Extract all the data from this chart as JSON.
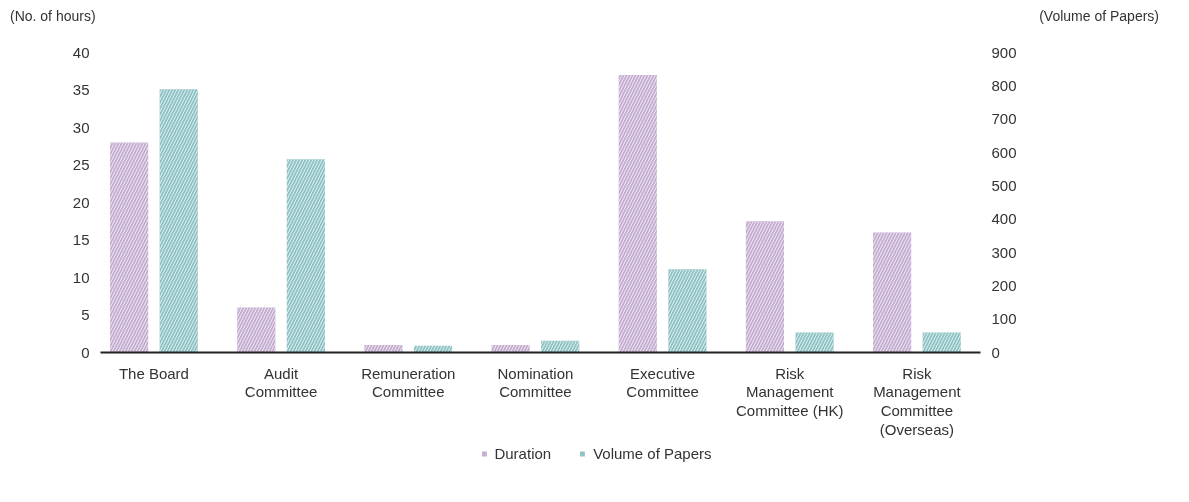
{
  "chart_data": {
    "type": "bar",
    "ylabel": "(No. of hours)",
    "y2label": "(Volume of Papers)",
    "categories": [
      "The Board",
      "Audit Committee",
      "Remuneration Committee",
      "Nomination Committee",
      "Executive Committee",
      "Risk Management Committee (HK)",
      "Risk Management Committee (Overseas)"
    ],
    "series": [
      {
        "name": "Duration",
        "color": "#c4aed2",
        "values": [
          28,
          6,
          1,
          1,
          37,
          17.5,
          16
        ]
      },
      {
        "name": "Volume of Papers",
        "color": "#8fc3c5",
        "axis": "y2",
        "values": [
          790,
          580,
          20,
          35,
          250,
          60,
          60
        ]
      }
    ],
    "ylim": [
      0,
      40
    ],
    "yticks": [
      0,
      5,
      10,
      15,
      20,
      25,
      30,
      35,
      40
    ],
    "y2lim": [
      0,
      900
    ],
    "y2ticks": [
      0,
      100,
      200,
      300,
      400,
      500,
      600,
      700,
      800,
      900
    ],
    "grid": false,
    "legend": "bottom"
  }
}
